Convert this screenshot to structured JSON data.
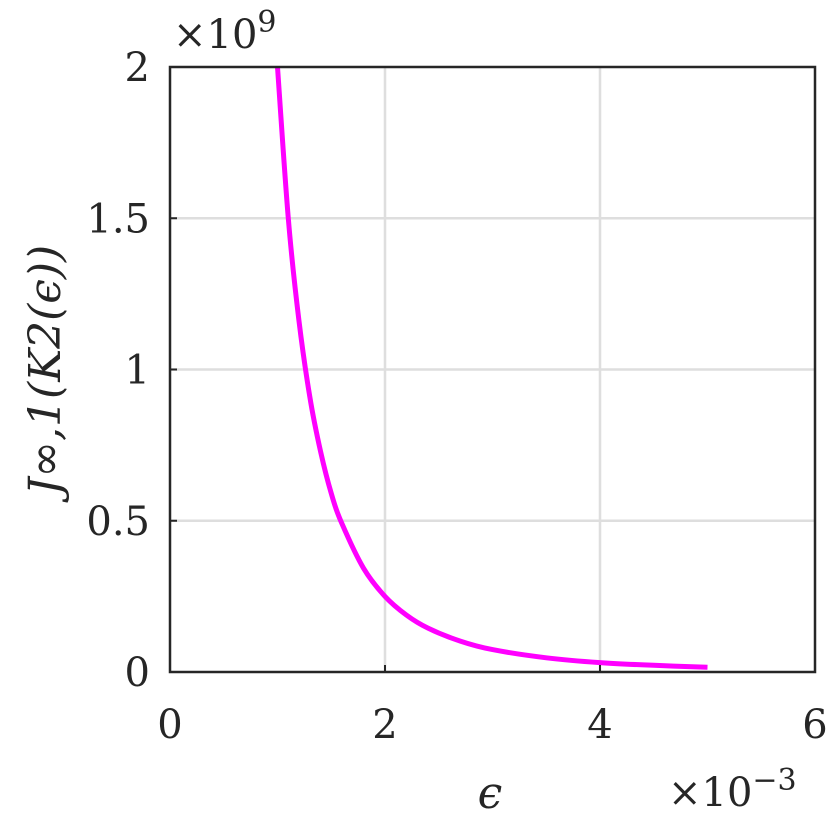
{
  "chart_data": {
    "type": "line",
    "title": "",
    "xlabel": "ϵ",
    "ylabel": "J∞,1(K2(ϵ))",
    "x_exponent_label": "×10−3",
    "y_exponent_label": "×109",
    "x_exponent_base": "×10",
    "x_exponent_power": "−3",
    "y_exponent_base": "×10",
    "y_exponent_power": "9",
    "xlim": [
      0,
      6
    ],
    "ylim": [
      0,
      2
    ],
    "x_ticks": [
      0,
      2,
      4,
      6
    ],
    "y_ticks": [
      0,
      0.5,
      1,
      1.5,
      2
    ],
    "x_tick_labels": [
      "0",
      "2",
      "4",
      "6"
    ],
    "y_tick_labels": [
      "0",
      "0.5",
      "1",
      "1.5",
      "2"
    ],
    "grid": true,
    "series": [
      {
        "color": "#ff00ff",
        "x": [
          1.0,
          1.1,
          1.2,
          1.3,
          1.4,
          1.5,
          1.6,
          1.8,
          2.0,
          2.2,
          2.4,
          2.7,
          3.0,
          3.5,
          4.0,
          4.5,
          5.0
        ],
        "y": [
          2.0,
          1.5,
          1.16,
          0.91,
          0.73,
          0.59,
          0.49,
          0.343,
          0.25,
          0.188,
          0.145,
          0.102,
          0.074,
          0.047,
          0.031,
          0.022,
          0.016
        ]
      }
    ]
  }
}
